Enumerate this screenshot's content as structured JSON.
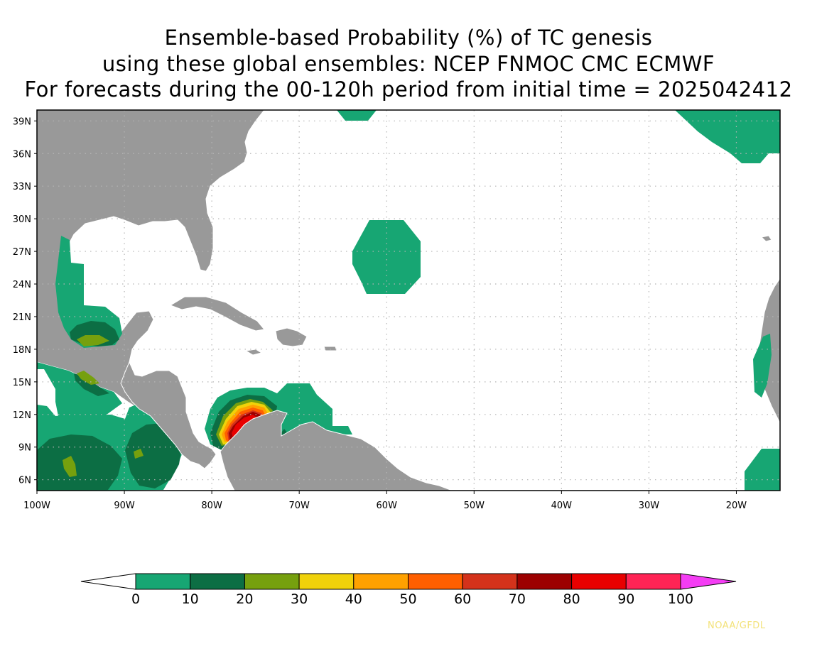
{
  "title": {
    "line1": "Ensemble-based Probability (%) of TC genesis",
    "line2": "using these global ensembles:   NCEP FNMOC CMC ECMWF",
    "line3": "For forecasts during the 00-120h period from initial time = 2025042412"
  },
  "map": {
    "lat_labels": [
      "39N",
      "36N",
      "33N",
      "30N",
      "27N",
      "24N",
      "21N",
      "18N",
      "15N",
      "12N",
      "9N",
      "6N"
    ],
    "lat_values": [
      39,
      36,
      33,
      30,
      27,
      24,
      21,
      18,
      15,
      12,
      9,
      6
    ],
    "lon_labels": [
      "100W",
      "90W",
      "80W",
      "70W",
      "60W",
      "50W",
      "40W",
      "30W",
      "20W"
    ],
    "lon_values": [
      -100,
      -90,
      -80,
      -70,
      -60,
      -50,
      -40,
      -30,
      -20
    ],
    "lon_range": [
      -100,
      -15
    ],
    "lat_range": [
      5,
      40
    ],
    "land_color": "#999999",
    "border_color": "#ffffff",
    "grid": "dotted"
  },
  "colorbar": {
    "levels": [
      "0",
      "10",
      "20",
      "30",
      "40",
      "50",
      "60",
      "70",
      "80",
      "90",
      "100"
    ],
    "colors": [
      "#17a673",
      "#0c6e44",
      "#76a00e",
      "#f0d20a",
      "#ffa100",
      "#ff5f00",
      "#d4321b",
      "#9c0000",
      "#e80000",
      "#ff2455"
    ],
    "under_color": "#ffffff",
    "over_color": "#f43df4"
  },
  "credit": "NOAA/GFDL"
}
